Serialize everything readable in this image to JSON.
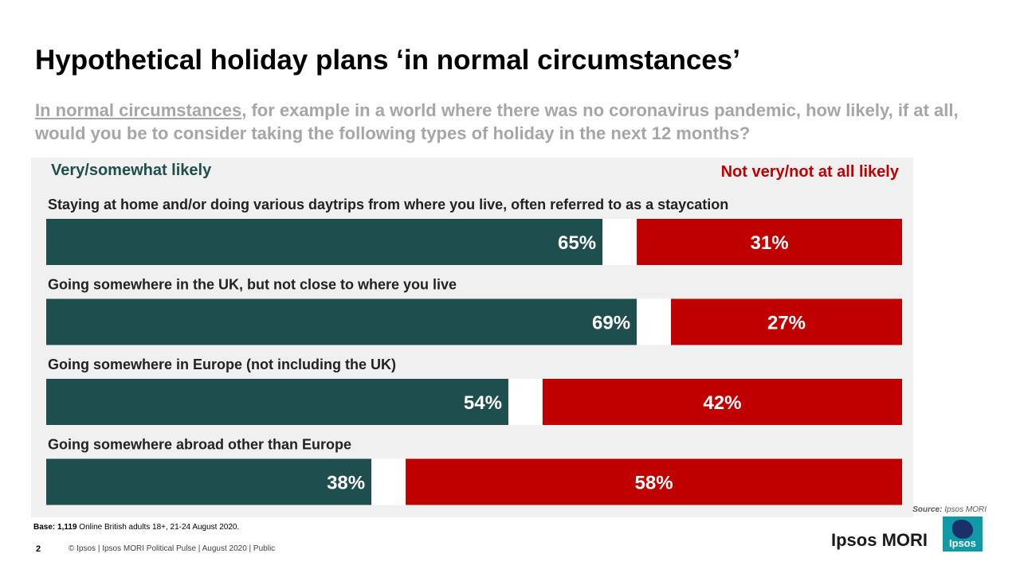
{
  "title": "Hypothetical holiday plans ‘in normal circumstances’",
  "subtitle": {
    "emphasis": "In normal circumstances",
    "rest": ", for example in a world where there was no coronavirus pandemic, how likely, if at all, would you be to consider taking the following types of holiday in the next 12 months?"
  },
  "legend": {
    "likely": "Very/somewhat likely",
    "unlikely": "Not very/not at all likely"
  },
  "colors": {
    "likely": "#1f4e4e",
    "unlikely": "#c00000",
    "panel": "#f0f0f0"
  },
  "chart_data": {
    "type": "bar",
    "orientation": "horizontal-stacked-diverging",
    "title": "Hypothetical holiday plans ‘in normal circumstances’",
    "categories": [
      "Staying at home and/or doing various daytrips from where you live, often referred to as a staycation",
      "Going somewhere in the UK, but not close to where you live",
      "Going somewhere in Europe (not including the UK)",
      "Going somewhere abroad other than Europe"
    ],
    "series": [
      {
        "name": "Very/somewhat likely",
        "values": [
          65,
          69,
          54,
          38
        ]
      },
      {
        "name": "Not very/not at all likely",
        "values": [
          31,
          27,
          42,
          58
        ]
      }
    ],
    "value_suffix": "%",
    "xlim": [
      0,
      100
    ],
    "legend": "top",
    "grid": false
  },
  "source": {
    "label": "Source:",
    "value": "Ipsos MORI"
  },
  "base": {
    "label": "Base:",
    "value": "1,119",
    "rest": "Online British adults 18+, 21-24 August 2020."
  },
  "footer": {
    "page_number": "2",
    "text": "© Ipsos | Ipsos MORI  Political Pulse | August 2020 | Public"
  },
  "brand": {
    "name": "Ipsos MORI",
    "logo_text": "Ipsos"
  }
}
